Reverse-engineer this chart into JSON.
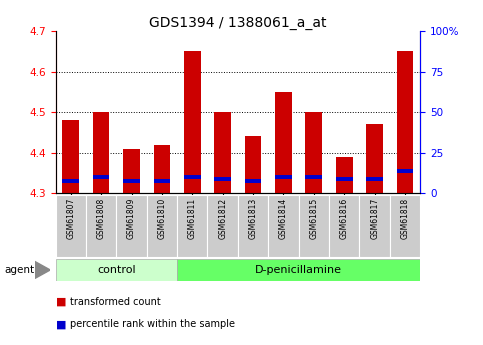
{
  "title": "GDS1394 / 1388061_a_at",
  "samples": [
    "GSM61807",
    "GSM61808",
    "GSM61809",
    "GSM61810",
    "GSM61811",
    "GSM61812",
    "GSM61813",
    "GSM61814",
    "GSM61815",
    "GSM61816",
    "GSM61817",
    "GSM61818"
  ],
  "red_values": [
    4.48,
    4.5,
    4.41,
    4.42,
    4.65,
    4.5,
    4.44,
    4.55,
    4.5,
    4.39,
    4.47,
    4.65
  ],
  "blue_bottom": [
    4.326,
    4.334,
    4.326,
    4.326,
    4.334,
    4.33,
    4.326,
    4.334,
    4.334,
    4.33,
    4.33,
    4.35
  ],
  "blue_height": [
    0.01,
    0.01,
    0.01,
    0.01,
    0.01,
    0.01,
    0.01,
    0.01,
    0.01,
    0.01,
    0.01,
    0.01
  ],
  "ymin": 4.3,
  "ymax": 4.7,
  "y_ticks_left": [
    4.3,
    4.4,
    4.5,
    4.6,
    4.7
  ],
  "y_ticks_right": [
    0,
    25,
    50,
    75,
    100
  ],
  "y_ticks_right_labels": [
    "0",
    "25",
    "50",
    "75",
    "100%"
  ],
  "grid_values": [
    4.4,
    4.5,
    4.6
  ],
  "bar_bottom": 4.3,
  "n_control": 4,
  "control_label": "control",
  "treatment_label": "D-penicillamine",
  "agent_label": "agent",
  "legend_red": "transformed count",
  "legend_blue": "percentile rank within the sample",
  "red_color": "#cc0000",
  "blue_color": "#0000cc",
  "bg_plot": "#ffffff",
  "bg_label_control": "#ccffcc",
  "bg_label_treatment": "#66ff66",
  "bg_ticklabels": "#cccccc",
  "title_fontsize": 10,
  "bar_width": 0.55
}
